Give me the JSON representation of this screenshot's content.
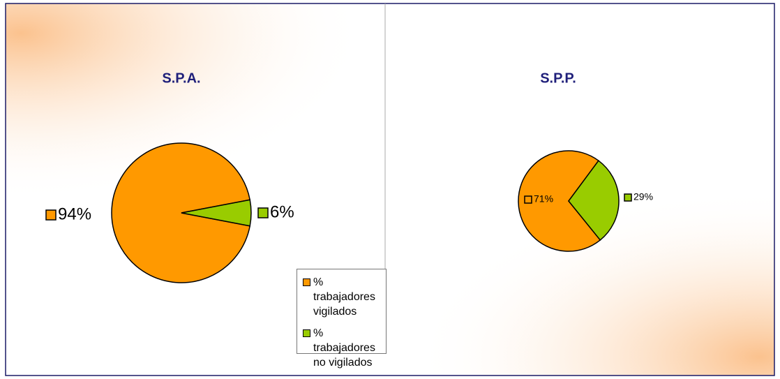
{
  "chart_data": [
    {
      "type": "pie",
      "title": "S.P.A.",
      "values": [
        94,
        6
      ],
      "value_labels": [
        "94%",
        "6%"
      ],
      "colors": [
        "#ff9900",
        "#99cc00"
      ]
    },
    {
      "type": "pie",
      "title": "S.P.P.",
      "values": [
        71,
        29
      ],
      "value_labels": [
        "71%",
        "29%"
      ],
      "colors": [
        "#ff9900",
        "#99cc00"
      ]
    }
  ],
  "legend": {
    "categories": [
      "% trabajadores vigilados",
      "% trabajadores no vigilados"
    ],
    "colors": [
      "#ff9900",
      "#99cc00"
    ]
  }
}
